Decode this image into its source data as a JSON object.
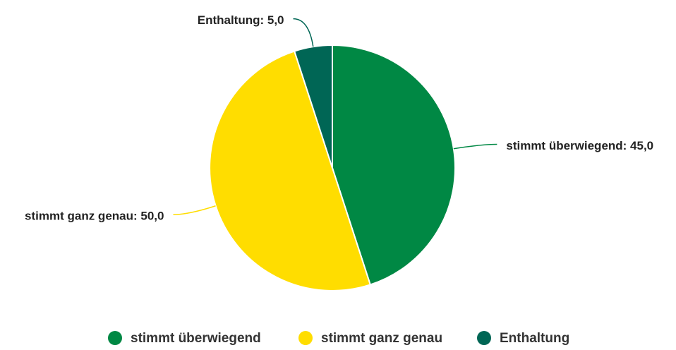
{
  "chart_data": {
    "type": "pie",
    "categories": [
      "stimmt überwiegend",
      "stimmt ganz genau",
      "Enthaltung"
    ],
    "values": [
      45,
      50,
      5
    ],
    "value_labels": [
      "stimmt überwiegend: 45,0",
      "stimmt ganz genau: 50,0",
      "Enthaltung: 5,0"
    ],
    "colors": [
      "#008844",
      "#ffdd00",
      "#006655"
    ],
    "legend": "bottom"
  }
}
